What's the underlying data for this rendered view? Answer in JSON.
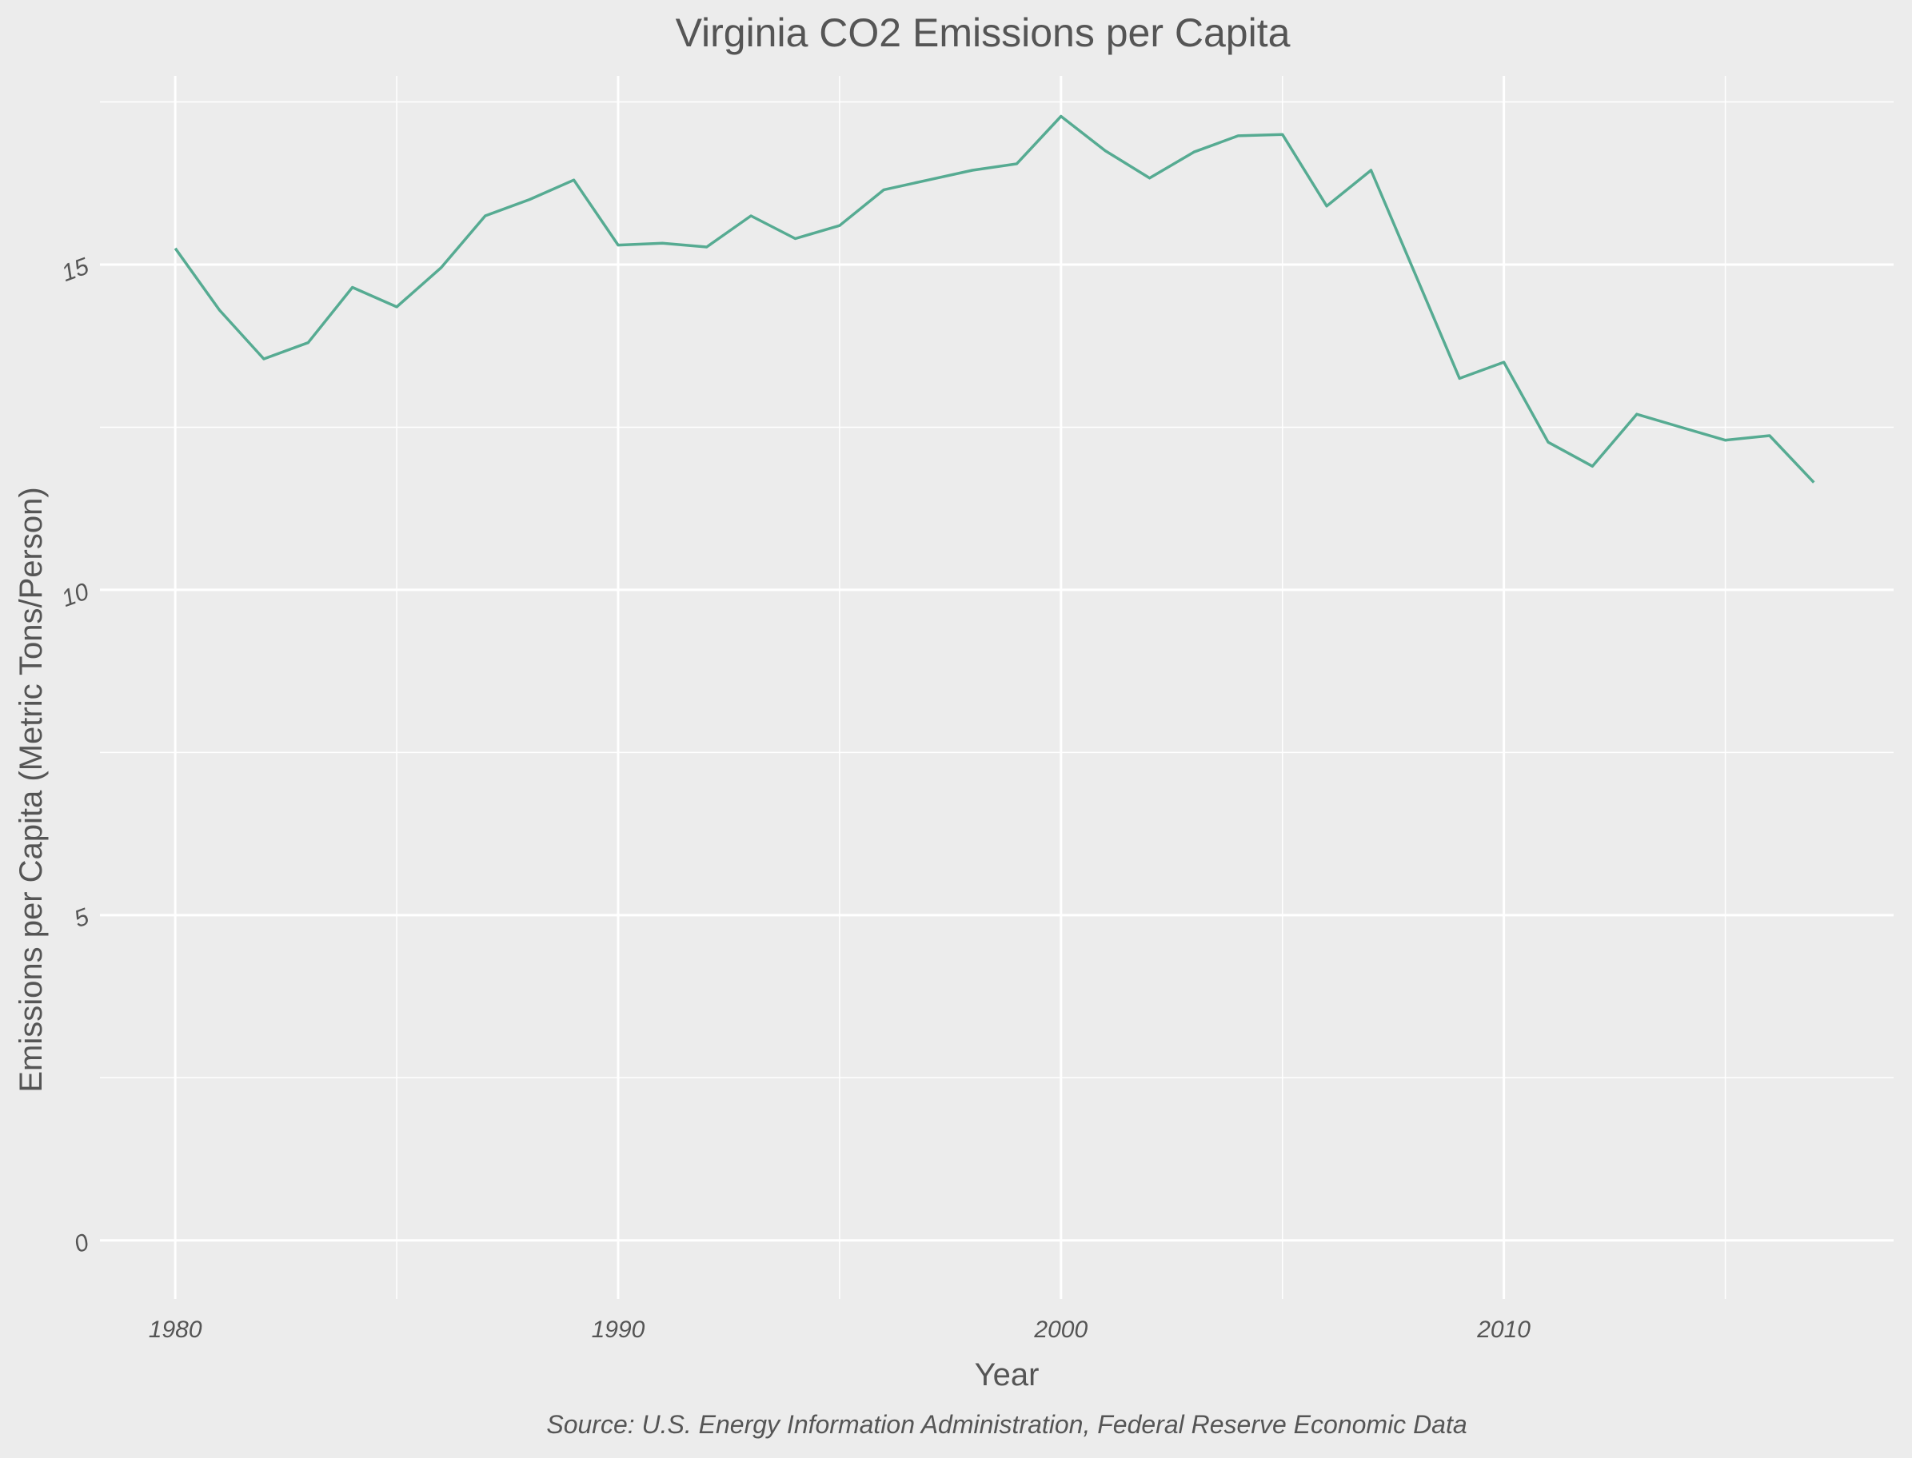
{
  "chart_data": {
    "type": "line",
    "title": "Virginia CO2 Emissions per Capita",
    "xlabel": "Year",
    "ylabel": "Emissions per Capita (Metric Tons/Person)",
    "caption": "Source: U.S. Energy Information Administration, Federal Reserve Economic Data",
    "xlim": [
      1978.3,
      2018.8
    ],
    "ylim": [
      -0.9,
      17.9
    ],
    "x_ticks": [
      1980,
      1990,
      2000,
      2010
    ],
    "x_tick_labels": [
      "1980",
      "1990",
      "2000",
      "2010"
    ],
    "x_minor_ticks": [
      1985,
      1995,
      2005,
      2015
    ],
    "y_ticks": [
      0,
      5,
      10,
      15
    ],
    "y_tick_labels": [
      "0",
      "5",
      "10",
      "15"
    ],
    "y_minor_ticks": [
      2.5,
      7.5,
      12.5,
      17.5
    ],
    "grid": true,
    "line_color": "#56ab92",
    "background_color": "#ececec",
    "x": [
      1980,
      1981,
      1982,
      1983,
      1984,
      1985,
      1986,
      1987,
      1988,
      1989,
      1990,
      1991,
      1992,
      1993,
      1994,
      1995,
      1996,
      1997,
      1998,
      1999,
      2000,
      2001,
      2002,
      2003,
      2004,
      2005,
      2006,
      2007,
      2008,
      2009,
      2010,
      2011,
      2012,
      2013,
      2014,
      2015,
      2016,
      2017
    ],
    "values": [
      15.25,
      14.3,
      13.55,
      13.8,
      14.65,
      14.35,
      14.95,
      15.75,
      16.0,
      16.3,
      15.3,
      15.33,
      15.27,
      15.75,
      15.4,
      15.6,
      16.15,
      16.3,
      16.45,
      16.55,
      17.28,
      16.75,
      16.33,
      16.73,
      16.98,
      17.0,
      15.9,
      16.45,
      14.85,
      13.25,
      13.5,
      12.27,
      11.9,
      12.7,
      12.5,
      12.3,
      12.37,
      11.65
    ]
  }
}
